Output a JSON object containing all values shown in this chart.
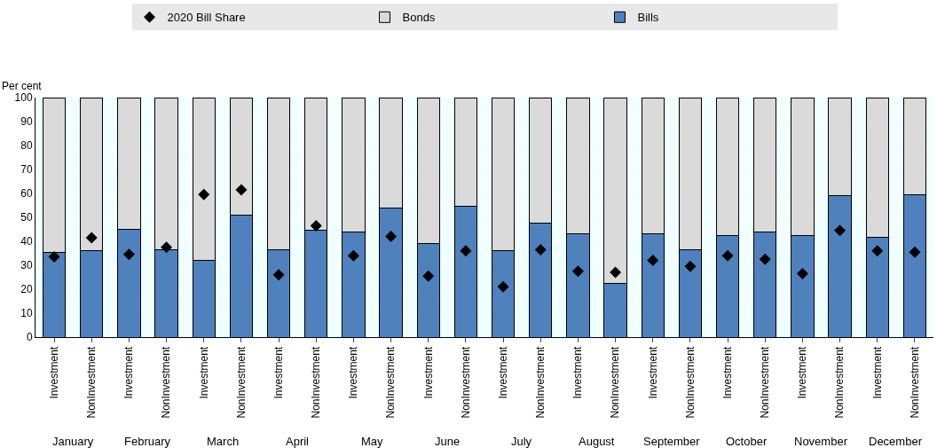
{
  "chart_data": {
    "type": "bar",
    "stacked": true,
    "ylabel": "Per cent",
    "categories": [
      "Investment",
      "NonInvestment",
      "Investment",
      "NonInvestment",
      "Investment",
      "NonInvestment",
      "Investment",
      "NonInvestment",
      "Investment",
      "NonInvestment",
      "Investment",
      "NonInvestment",
      "Investment",
      "NonInvestment",
      "Investment",
      "NonInvestment",
      "Investment",
      "NonInvestment",
      "Investment",
      "NonInvestment",
      "Investment",
      "NonInvestment",
      "Investment",
      "NonInvestment"
    ],
    "annotations": [
      "January",
      "February",
      "March",
      "April",
      "May",
      "June",
      "July",
      "August",
      "September",
      "October",
      "November",
      "December"
    ],
    "series": [
      {
        "name": "Bills",
        "color": "#4f81bd",
        "values": [
          35.5,
          36,
          45,
          36.5,
          32,
          51,
          36.5,
          44.5,
          44,
          54,
          39,
          54.5,
          36,
          47.5,
          43,
          22.5,
          43,
          36.5,
          42.5,
          44,
          42.5,
          59,
          41.5,
          59.5
        ]
      },
      {
        "name": "Bonds",
        "color": "#dadada",
        "values": [
          64.5,
          64,
          55,
          63.5,
          68,
          49,
          63.5,
          55.5,
          56,
          46,
          61,
          45.5,
          64,
          52.5,
          57,
          77.5,
          57,
          63.5,
          57.5,
          56,
          57.5,
          41,
          58.5,
          40.5
        ]
      },
      {
        "name": "2020 Bill Share",
        "type": "scatter",
        "color": "#000000",
        "marker": "diamond",
        "values": [
          33.5,
          41.5,
          34.5,
          37.5,
          59.5,
          61.5,
          26,
          46.5,
          34,
          42,
          25.5,
          36,
          21,
          36.5,
          27.5,
          27,
          32,
          29.5,
          34,
          32.5,
          26.5,
          44.5,
          36,
          35.5
        ]
      }
    ],
    "ylim": [
      0,
      100
    ],
    "yticks": [
      0,
      10,
      20,
      30,
      40,
      50,
      60,
      70,
      80,
      90,
      100
    ],
    "grid": "y",
    "legend": "top"
  }
}
